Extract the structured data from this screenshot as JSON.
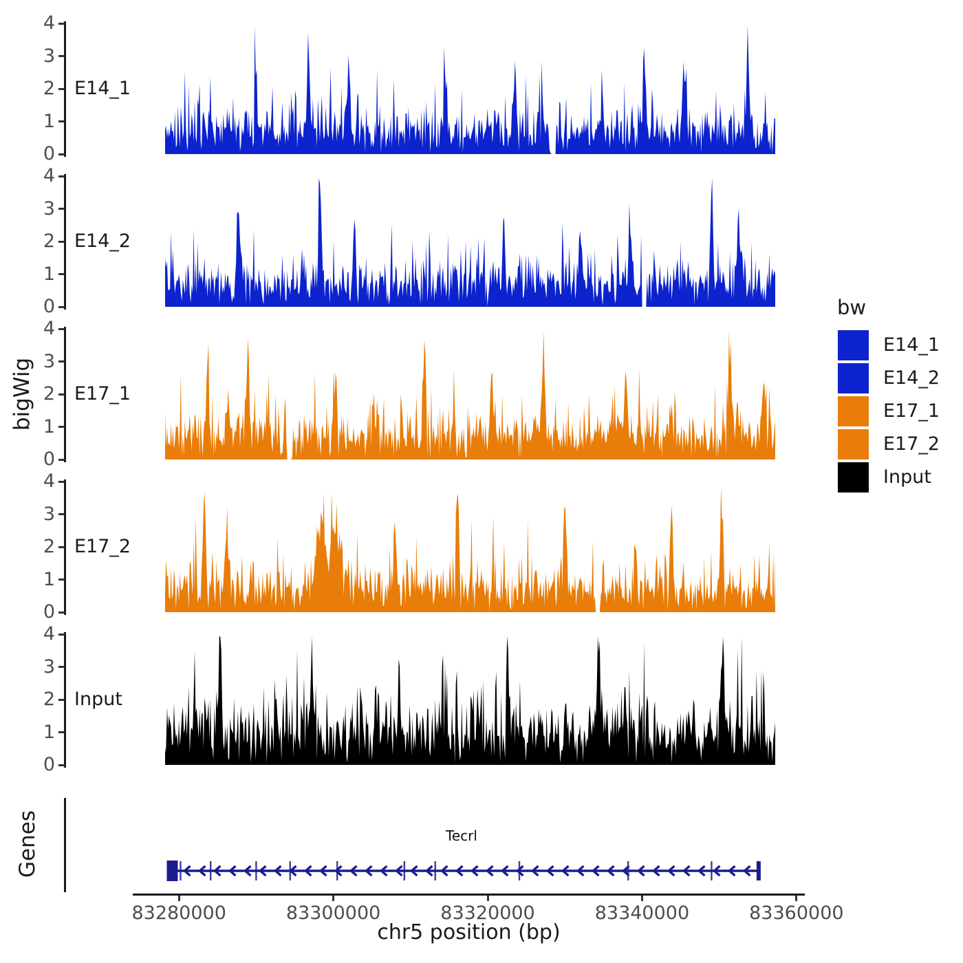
{
  "axes": {
    "y_title": "bigWig",
    "x_title": "chr5 position (bp)",
    "genes_title": "Genes",
    "y_tick_labels": [
      "4",
      "3",
      "2",
      "1",
      "0"
    ]
  },
  "legend": {
    "title": "bw",
    "entries": [
      {
        "label": "E14_1",
        "color": "#0c23ce"
      },
      {
        "label": "E14_2",
        "color": "#0c23ce"
      },
      {
        "label": "E17_1",
        "color": "#e87d0a"
      },
      {
        "label": "E17_2",
        "color": "#e87d0a"
      },
      {
        "label": "Input",
        "color": "#000000"
      }
    ]
  },
  "chart_data": {
    "type": "area",
    "subtype": "genome-coverage-tracks",
    "title": "",
    "xlabel": "chr5 position (bp)",
    "ylabel": "bigWig",
    "xlim": [
      83278200,
      83357250
    ],
    "x_ticks": [
      83280000,
      83300000,
      83320000,
      83340000,
      83360000
    ],
    "track_ylim": [
      0,
      4
    ],
    "track_y_ticks": [
      0,
      1,
      2,
      3,
      4
    ],
    "legend_title": "bw",
    "legend_position": "right",
    "grid": false,
    "tracks": [
      {
        "name": "E14_1",
        "color": "#0c23ce",
        "seed": 1101,
        "baseline_mean": 0.6,
        "notable_peaks": [
          {
            "bp": 83289800,
            "v": 2.85
          },
          {
            "bp": 83296800,
            "v": 3.35
          },
          {
            "bp": 83302000,
            "v": 2.4
          },
          {
            "bp": 83314500,
            "v": 2.5
          },
          {
            "bp": 83323500,
            "v": 2.6
          },
          {
            "bp": 83326900,
            "v": 2.85
          },
          {
            "bp": 83340300,
            "v": 2.9
          },
          {
            "bp": 83345500,
            "v": 2.5
          },
          {
            "bp": 83353700,
            "v": 2.9
          }
        ],
        "zero_gaps_bp": [
          83328500
        ]
      },
      {
        "name": "E14_2",
        "color": "#0c23ce",
        "seed": 2202,
        "baseline_mean": 0.6,
        "notable_peaks": [
          {
            "bp": 83287700,
            "v": 3.0
          },
          {
            "bp": 83298300,
            "v": 3.85
          },
          {
            "bp": 83302700,
            "v": 2.5
          },
          {
            "bp": 83322100,
            "v": 2.75
          },
          {
            "bp": 83332000,
            "v": 2.5
          },
          {
            "bp": 83338500,
            "v": 2.6
          },
          {
            "bp": 83349000,
            "v": 2.95
          },
          {
            "bp": 83352500,
            "v": 2.6
          }
        ],
        "zero_gaps_bp": [
          83340300
        ]
      },
      {
        "name": "E17_1",
        "color": "#e87d0a",
        "seed": 3303,
        "baseline_mean": 0.62,
        "notable_peaks": [
          {
            "bp": 83283700,
            "v": 2.4
          },
          {
            "bp": 83288900,
            "v": 3.0
          },
          {
            "bp": 83300300,
            "v": 2.5
          },
          {
            "bp": 83311800,
            "v": 3.2
          },
          {
            "bp": 83320500,
            "v": 2.5
          },
          {
            "bp": 83327200,
            "v": 2.9
          },
          {
            "bp": 83337900,
            "v": 2.55
          },
          {
            "bp": 83351400,
            "v": 2.9
          },
          {
            "bp": 83355700,
            "v": 2.5
          }
        ],
        "zero_gaps_bp": [
          83294300
        ]
      },
      {
        "name": "E17_2",
        "color": "#e87d0a",
        "seed": 4404,
        "baseline_mean": 0.62,
        "notable_peaks": [
          {
            "bp": 83283300,
            "v": 3.1
          },
          {
            "bp": 83286200,
            "v": 2.6
          },
          {
            "bp": 83298400,
            "v": 2.5,
            "broad": true
          },
          {
            "bp": 83300200,
            "v": 2.55,
            "broad": true
          },
          {
            "bp": 83308000,
            "v": 2.5
          },
          {
            "bp": 83316000,
            "v": 3.5
          },
          {
            "bp": 83330000,
            "v": 2.95
          },
          {
            "bp": 83343800,
            "v": 2.9
          },
          {
            "bp": 83350300,
            "v": 3.15
          }
        ],
        "zero_gaps_bp": [
          83334300
        ]
      },
      {
        "name": "Input",
        "color": "#000000",
        "seed": 5505,
        "baseline_mean": 0.85,
        "notable_peaks": [
          {
            "bp": 83285300,
            "v": 3.0
          },
          {
            "bp": 83297200,
            "v": 2.4
          },
          {
            "bp": 83308500,
            "v": 2.3
          },
          {
            "bp": 83322500,
            "v": 2.4
          },
          {
            "bp": 83334400,
            "v": 3.3
          },
          {
            "bp": 83340200,
            "v": 2.9
          },
          {
            "bp": 83350500,
            "v": 2.45
          }
        ],
        "zero_gaps_bp": []
      }
    ],
    "gene_track": {
      "name": "Tecrl",
      "chrom": "chr5",
      "strand": "-",
      "gene_span_bp": [
        83278600,
        83355100
      ],
      "exon_tick_bp": [
        83280200,
        83284100,
        83290000,
        83294400,
        83300500,
        83309200,
        83313200,
        83324100,
        83338200,
        83349000
      ],
      "color": "#1c1c8f"
    }
  }
}
